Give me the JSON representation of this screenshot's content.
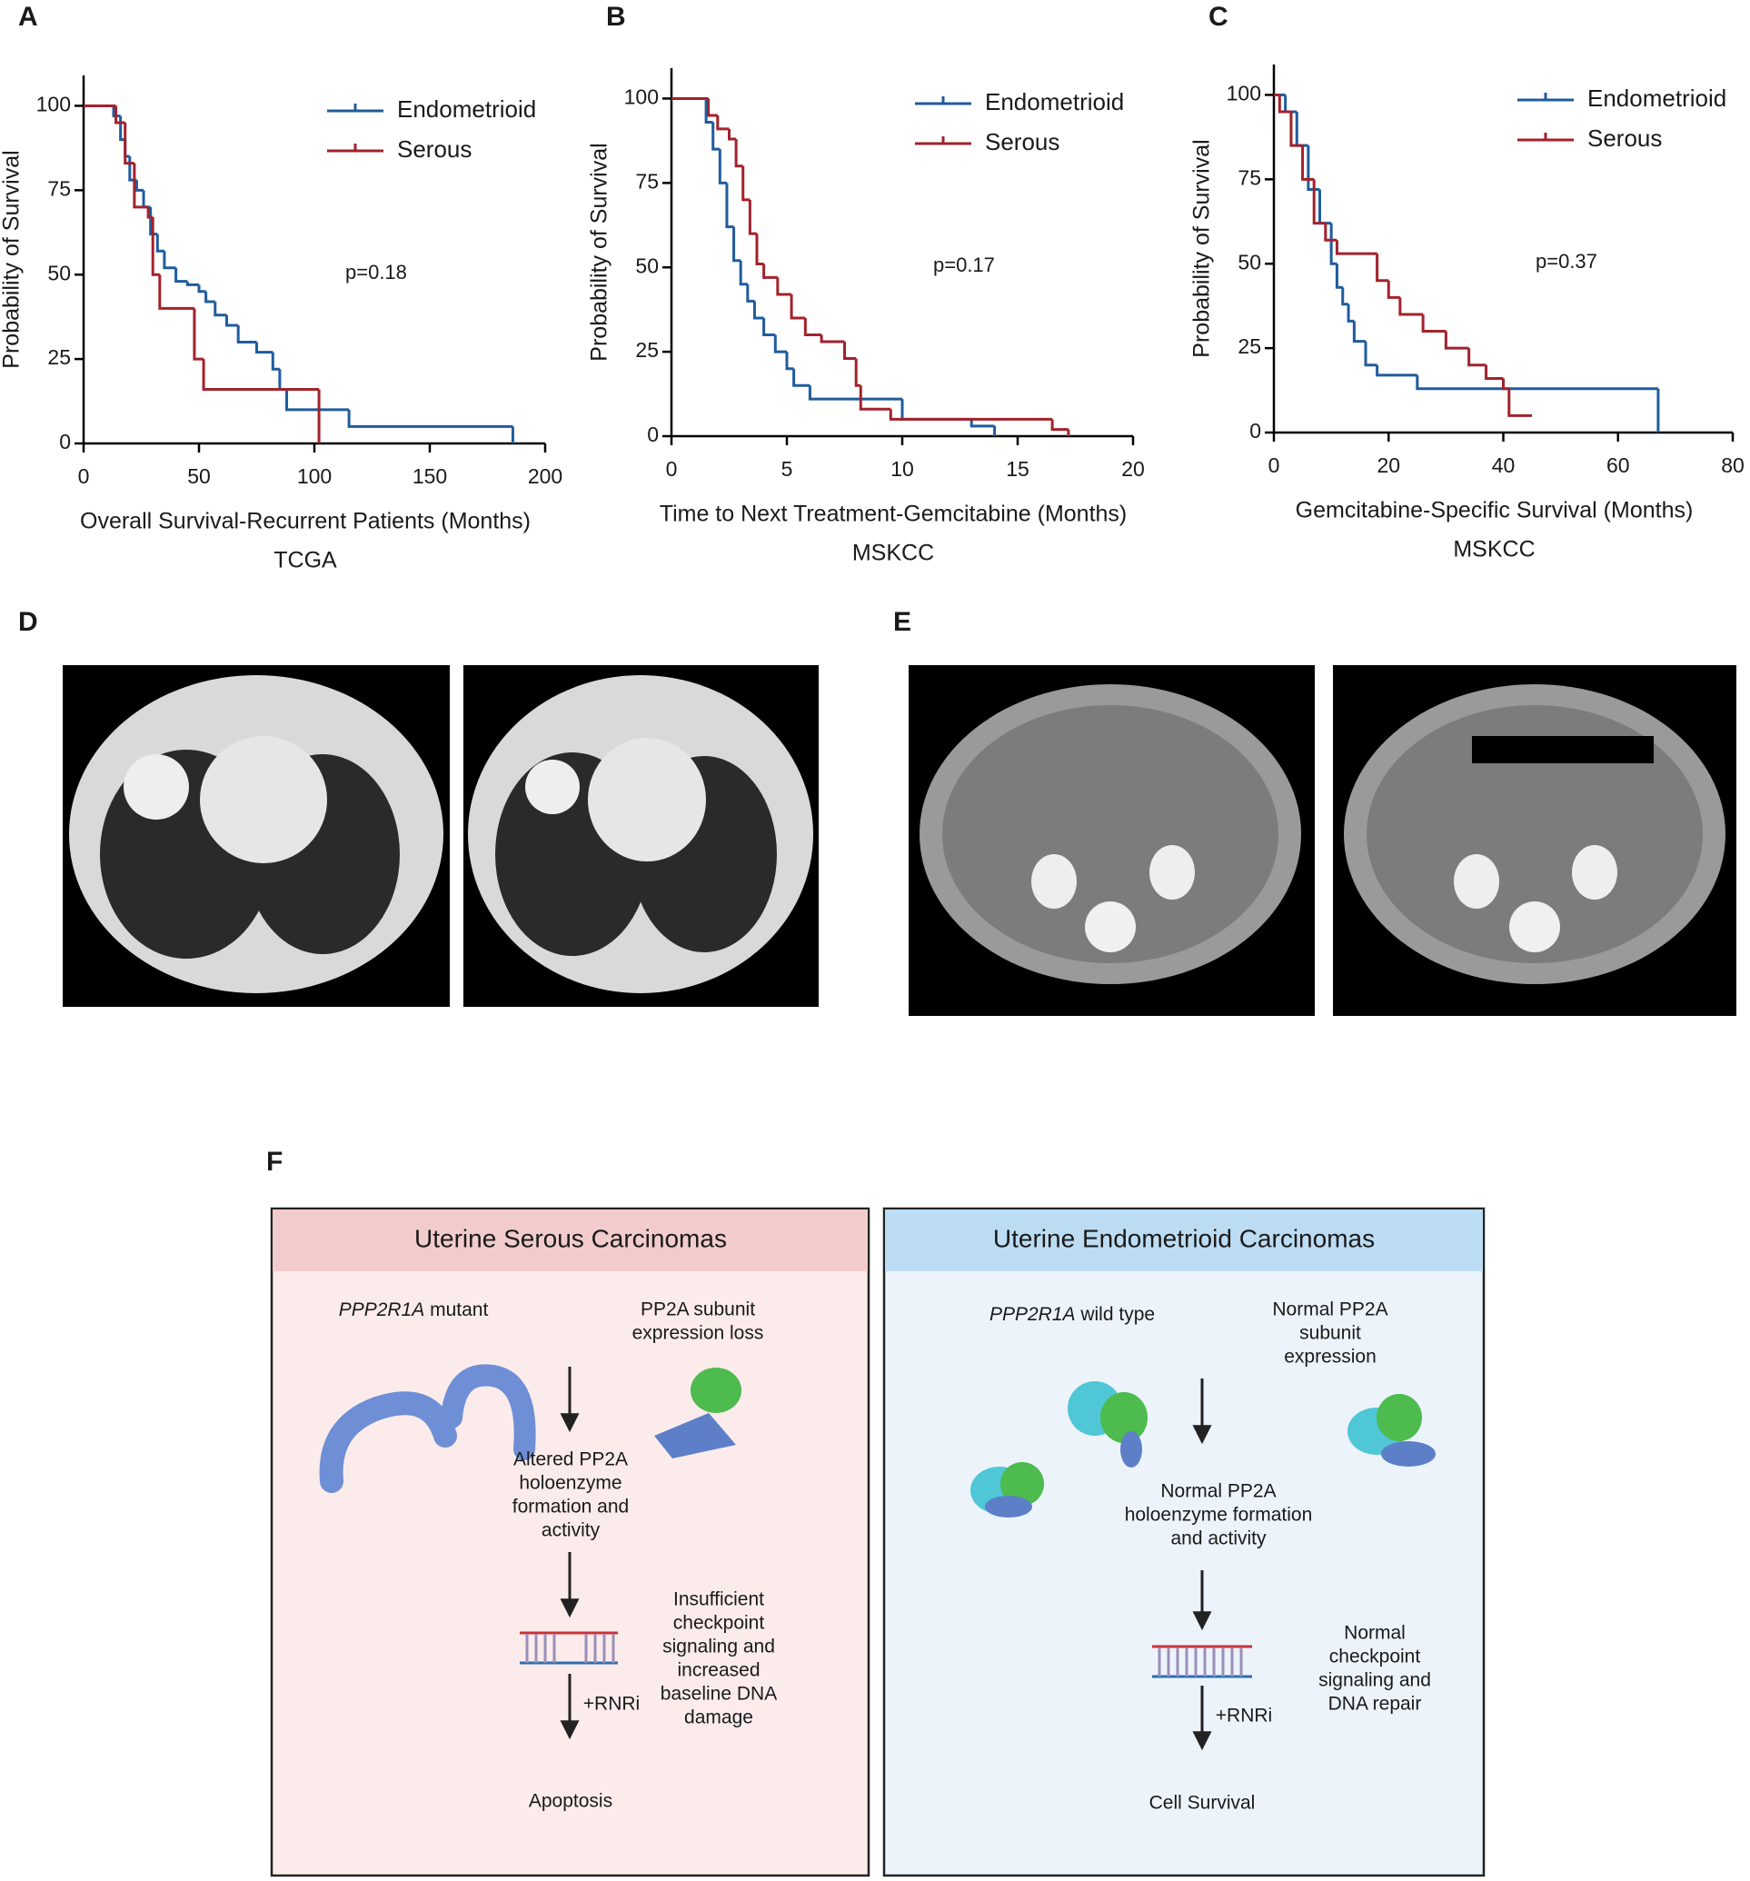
{
  "chart_data": [
    {
      "type": "step",
      "panel": "A",
      "ylabel": "Probability of Survival",
      "xlabel": "Overall Survival-Recurrent Patients (Months)",
      "subtitle": "TCGA",
      "annotation": "p=0.18",
      "xlim": [
        0,
        200
      ],
      "ylim": [
        0,
        109
      ],
      "xticks": [
        0,
        50,
        100,
        150,
        200
      ],
      "yticks": [
        0,
        25,
        50,
        75,
        100
      ],
      "series": [
        {
          "name": "Endometrioid",
          "color": "#1f5c9e",
          "x": [
            0,
            13,
            16,
            18,
            20,
            23,
            26,
            29,
            32,
            35,
            40,
            45,
            50,
            53,
            57,
            62,
            67,
            75,
            82,
            85,
            88,
            115,
            186
          ],
          "values": [
            100,
            97,
            90,
            85,
            78,
            75,
            70,
            62,
            57,
            52,
            48,
            47,
            45,
            42,
            38,
            35,
            30,
            27,
            22,
            16,
            10,
            5,
            0
          ]
        },
        {
          "name": "Serous",
          "color": "#a3222b",
          "x": [
            0,
            14,
            18,
            22,
            28,
            30,
            33,
            48,
            52,
            102
          ],
          "values": [
            100,
            95,
            83,
            70,
            67,
            50,
            40,
            25,
            16,
            0
          ]
        }
      ]
    },
    {
      "type": "step",
      "panel": "B",
      "ylabel": "Probability of Survival",
      "xlabel": "Time to Next Treatment-Gemcitabine (Months)",
      "subtitle": "MSKCC",
      "annotation": "p=0.17",
      "xlim": [
        0,
        20
      ],
      "ylim": [
        0,
        109
      ],
      "xticks": [
        0,
        5,
        10,
        15,
        20
      ],
      "yticks": [
        0,
        25,
        50,
        75,
        100
      ],
      "series": [
        {
          "name": "Endometrioid",
          "color": "#1f5c9e",
          "x": [
            0,
            1.5,
            1.8,
            2.1,
            2.4,
            2.7,
            3,
            3.3,
            3.6,
            4,
            4.5,
            5,
            5.3,
            6,
            10,
            13,
            14
          ],
          "values": [
            100,
            93,
            85,
            75,
            62,
            52,
            45,
            40,
            35,
            30,
            25,
            20,
            15,
            11,
            5,
            3,
            0
          ]
        },
        {
          "name": "Serous",
          "color": "#a3222b",
          "x": [
            0,
            1.6,
            2,
            2.5,
            2.8,
            3.1,
            3.4,
            3.7,
            4,
            4.6,
            5.2,
            5.8,
            6.5,
            7.5,
            8,
            8.2,
            9.5,
            16.5,
            17.2
          ],
          "values": [
            100,
            95,
            91,
            88,
            80,
            70,
            60,
            51,
            47,
            42,
            35,
            30,
            28,
            23,
            15,
            8,
            5,
            2,
            0
          ]
        }
      ]
    },
    {
      "type": "step",
      "panel": "C",
      "ylabel": "Probability of Survival",
      "xlabel": "Gemcitabine-Specific Survival (Months)",
      "subtitle": "MSKCC",
      "annotation": "p=0.37",
      "xlim": [
        0,
        80
      ],
      "ylim": [
        0,
        109
      ],
      "xticks": [
        0,
        20,
        40,
        60,
        80
      ],
      "yticks": [
        0,
        25,
        50,
        75,
        100
      ],
      "series": [
        {
          "name": "Endometrioid",
          "color": "#1f5c9e",
          "x": [
            0,
            2,
            4,
            6,
            8,
            10,
            11,
            12,
            13,
            14,
            16,
            18,
            25,
            67
          ],
          "values": [
            100,
            95,
            85,
            72,
            62,
            50,
            43,
            38,
            33,
            27,
            20,
            17,
            13,
            0
          ]
        },
        {
          "name": "Serous",
          "color": "#a3222b",
          "x": [
            0,
            1,
            3,
            5,
            7,
            9,
            11,
            18,
            20,
            22,
            26,
            30,
            34,
            37,
            40,
            41,
            45
          ],
          "values": [
            100,
            95,
            85,
            75,
            62,
            57,
            53,
            45,
            40,
            35,
            30,
            25,
            20,
            16,
            13,
            5,
            5
          ]
        }
      ]
    }
  ],
  "ct_panels": [
    {
      "label": "D"
    },
    {
      "label": "E"
    }
  ],
  "diagram": {
    "label": "F",
    "left": {
      "title": "Uterine Serous Carcinomas",
      "gene": "PPP2R1A",
      "gene_status": "mutant",
      "subunit": [
        "PP2A subunit",
        "expression loss"
      ],
      "effect": [
        "Altered PP2A",
        "holoenzyme",
        "formation and",
        "activity"
      ],
      "checkpoint": [
        "Insufficient",
        "checkpoint",
        "signaling and",
        "increased",
        "baseline DNA",
        "damage"
      ],
      "treatment": "+RNRi",
      "outcome": "Apoptosis"
    },
    "right": {
      "title": "Uterine Endometrioid Carcinomas",
      "gene": "PPP2R1A",
      "gene_status": "wild type",
      "subunit": [
        "Normal PP2A",
        "subunit",
        "expression"
      ],
      "effect": [
        "Normal  PP2A",
        "holoenzyme formation",
        "and activity"
      ],
      "checkpoint": [
        "Normal",
        "checkpoint",
        "signaling and",
        "DNA repair"
      ],
      "treatment": "+RNRi",
      "outcome": "Cell Survival"
    }
  }
}
